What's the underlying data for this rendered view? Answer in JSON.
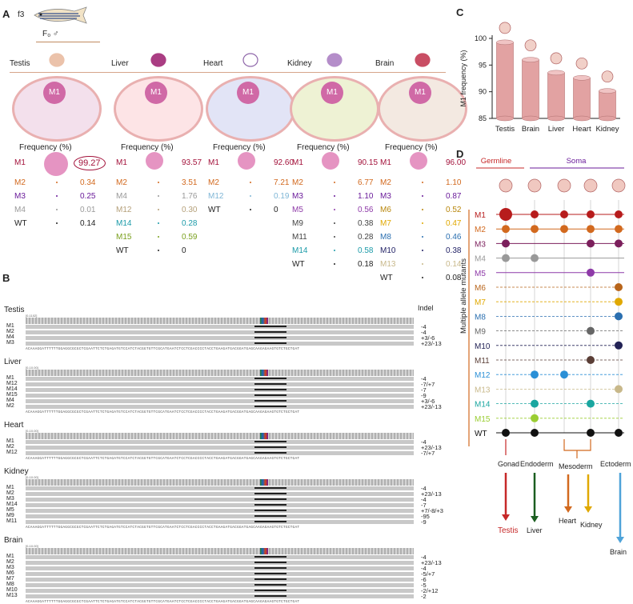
{
  "panels": {
    "A": "A",
    "B": "B",
    "C": "C",
    "D": "D"
  },
  "panelA": {
    "fish_label": "f3",
    "founder": "F₀ ♂",
    "tissues": [
      {
        "name": "Testis",
        "center_label": "M1",
        "freq_header": "Frequency (%)",
        "rows": [
          [
            "M1",
            "99.27",
            "#a3123b"
          ],
          [
            "M2",
            "0.34",
            "#d2691e"
          ],
          [
            "M3",
            "0.25",
            "#6a1b9a"
          ],
          [
            "M4",
            "0.01",
            "#999999"
          ],
          [
            "WT",
            "0.14",
            "#222222"
          ]
        ]
      },
      {
        "name": "Liver",
        "center_label": "M1",
        "freq_header": "Frequency (%)",
        "rows": [
          [
            "M1",
            "93.57",
            "#a3123b"
          ],
          [
            "M2",
            "3.51",
            "#d2691e"
          ],
          [
            "M4",
            "1.76",
            "#999999"
          ],
          [
            "M12",
            "0.30",
            "#b5a07a"
          ],
          [
            "M14",
            "0.28",
            "#1a9aa8"
          ],
          [
            "M15",
            "0.59",
            "#7aa01e"
          ],
          [
            "WT",
            "0",
            ""
          ]
        ]
      },
      {
        "name": "Heart",
        "center_label": "M1",
        "freq_header": "Frequency (%)",
        "rows": [
          [
            "M1",
            "92.60",
            "#a3123b"
          ],
          [
            "M2",
            "7.21",
            "#d2691e"
          ],
          [
            "M12",
            "0.19",
            "#7fb6d6"
          ],
          [
            "WT",
            "0",
            ""
          ]
        ]
      },
      {
        "name": "Kidney",
        "center_label": "M1",
        "freq_header": "Frequency (%)",
        "rows": [
          [
            "M1",
            "90.15",
            "#a3123b"
          ],
          [
            "M2",
            "6.77",
            "#d2691e"
          ],
          [
            "M3",
            "1.10",
            "#6a1b9a"
          ],
          [
            "M5",
            "0.56",
            "#8e3aa8"
          ],
          [
            "M9",
            "0.38",
            "#444444"
          ],
          [
            "M11",
            "0.28",
            "#444444"
          ],
          [
            "M14",
            "0.58",
            "#1a9aa8"
          ],
          [
            "WT",
            "0.18",
            ""
          ]
        ]
      },
      {
        "name": "Brain",
        "center_label": "M1",
        "freq_header": "Frequency (%)",
        "rows": [
          [
            "M1",
            "96.00",
            "#a3123b"
          ],
          [
            "M2",
            "1.10",
            "#d2691e"
          ],
          [
            "M3",
            "0.87",
            "#6a1b9a"
          ],
          [
            "M6",
            "0.52",
            "#b8860b"
          ],
          [
            "M7",
            "0.47",
            "#e0a800"
          ],
          [
            "M8",
            "0.46",
            "#2a6fb0"
          ],
          [
            "M10",
            "0.38",
            "#222266"
          ],
          [
            "M13",
            "0.14",
            "#c8b88a"
          ],
          [
            "WT",
            "0.08",
            ""
          ]
        ]
      }
    ]
  },
  "panelB": {
    "indel_header": "Indel",
    "groups": [
      {
        "name": "Testis",
        "coord": "[0-1102]",
        "tracks": [
          [
            "M1",
            "-4"
          ],
          [
            "M2",
            "-4"
          ],
          [
            "M4",
            "+3/-6"
          ],
          [
            "M3",
            "+23/-13"
          ]
        ]
      },
      {
        "name": "Liver",
        "coord": "[0-10.00]",
        "tracks": [
          [
            "M1",
            "-4"
          ],
          [
            "M12",
            "-7/+7"
          ],
          [
            "M14",
            "-7"
          ],
          [
            "M15",
            "-9"
          ],
          [
            "M4",
            "+3/-6"
          ],
          [
            "M2",
            "+23/-13"
          ]
        ]
      },
      {
        "name": "Heart",
        "coord": "[0-10.00]",
        "tracks": [
          [
            "M1",
            "-4"
          ],
          [
            "M2",
            "+23/-13"
          ],
          [
            "M12",
            "-7/+7"
          ]
        ]
      },
      {
        "name": "Kidney",
        "coord": "[0-10.00]",
        "tracks": [
          [
            "M1",
            "-4"
          ],
          [
            "M2",
            "+23/-13"
          ],
          [
            "M3",
            "-4"
          ],
          [
            "M14",
            "-7"
          ],
          [
            "M5",
            "+7/-8/+3"
          ],
          [
            "M9",
            "-95"
          ],
          [
            "M11",
            "-9"
          ]
        ]
      },
      {
        "name": "Brain",
        "coord": "[0-10.00]",
        "tracks": [
          [
            "M1",
            "-4"
          ],
          [
            "M2",
            "+23/-13"
          ],
          [
            "M3",
            "-4"
          ],
          [
            "M6",
            "-5/+7"
          ],
          [
            "M7",
            "-6"
          ],
          [
            "M8",
            "-5"
          ],
          [
            "M10",
            "-2/+12"
          ],
          [
            "M13",
            "-2"
          ]
        ]
      }
    ],
    "sequence": "ACAAAGGATTTTTTGGAGGCGCGCTCGAATTCTCTGAGATGTCCATCTACGGTGTTCGCATGAATCTCCTCGACCCCTACCTGAAGATGACGGATGAGCAAGAGAAGTGTCTGCTGAT"
  },
  "chart_data": {
    "type": "bar",
    "title": "",
    "ylabel": "M1 frequency  (%)",
    "xlabel": "",
    "categories": [
      "Testis",
      "Brain",
      "Liver",
      "Heart",
      "Kidney"
    ],
    "values": [
      99.27,
      96.0,
      93.57,
      92.6,
      90.15
    ],
    "ylim": [
      85,
      100
    ],
    "yticks": [
      85,
      90,
      95,
      100
    ],
    "color": "#e2a2a2"
  },
  "panelD": {
    "germline": "Germline",
    "soma": "Soma",
    "axis_label": "Multiple allele mutants",
    "mutants": [
      {
        "id": "M1",
        "color": "#b71c1c"
      },
      {
        "id": "M2",
        "color": "#d2691e"
      },
      {
        "id": "M3",
        "color": "#7b1f5c"
      },
      {
        "id": "M4",
        "color": "#999999"
      },
      {
        "id": "M5",
        "color": "#8e3aa8"
      },
      {
        "id": "M6",
        "color": "#b8651b"
      },
      {
        "id": "M7",
        "color": "#e0a800"
      },
      {
        "id": "M8",
        "color": "#2a6fb0"
      },
      {
        "id": "M9",
        "color": "#666666"
      },
      {
        "id": "M10",
        "color": "#222255"
      },
      {
        "id": "M11",
        "color": "#5a3e36"
      },
      {
        "id": "M12",
        "color": "#2a8fd6"
      },
      {
        "id": "M13",
        "color": "#c8b88a"
      },
      {
        "id": "M14",
        "color": "#1aa6a0"
      },
      {
        "id": "M15",
        "color": "#9acd32"
      },
      {
        "id": "WT",
        "color": "#111111"
      }
    ],
    "lineages": {
      "gonad": "Gonad",
      "endoderm": "Endoderm",
      "mesoderm": "Mesoderm",
      "ectoderm": "Ectoderm"
    },
    "outcomes": {
      "testis": "Testis",
      "liver": "Liver",
      "heart": "Heart",
      "kidney": "Kidney",
      "brain": "Brain"
    }
  }
}
